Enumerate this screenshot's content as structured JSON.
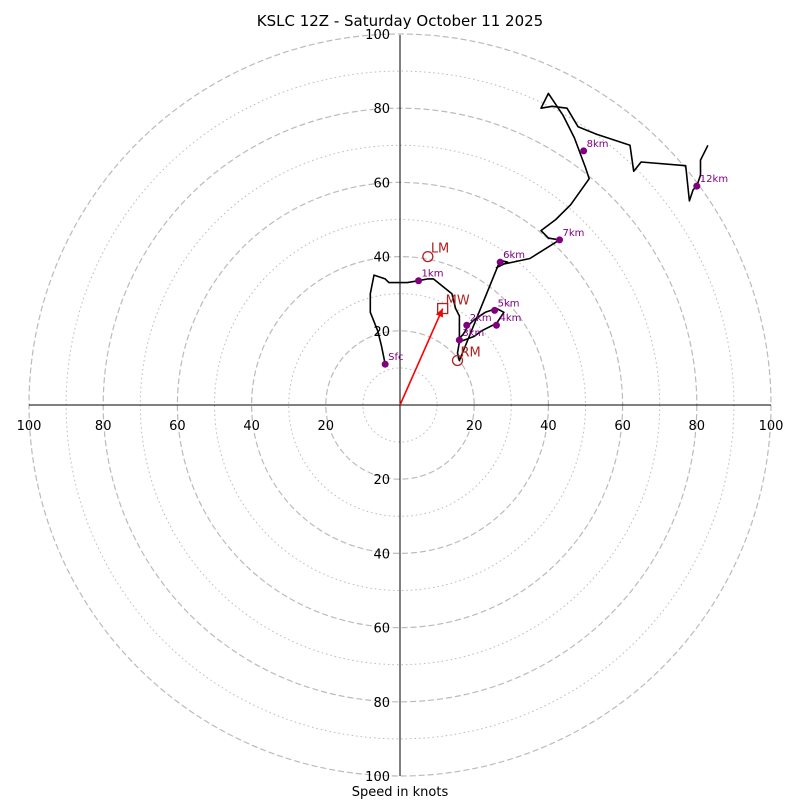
{
  "chart_data": {
    "type": "hodograph",
    "title": "KSLC 12Z - Saturday October 11 2025",
    "xlabel": "Speed in knots",
    "xlim": [
      -100,
      100
    ],
    "ylim": [
      -100,
      100
    ],
    "major_rings": [
      20,
      40,
      60,
      80,
      100
    ],
    "minor_rings": [
      10,
      30,
      50,
      70,
      90
    ],
    "tick_labels": [
      "20",
      "40",
      "60",
      "80",
      "100"
    ],
    "trace": [
      [
        -4,
        11
      ],
      [
        -5,
        16
      ],
      [
        -6,
        20
      ],
      [
        -8,
        25
      ],
      [
        -8,
        30
      ],
      [
        -7,
        35
      ],
      [
        -4,
        34
      ],
      [
        -3,
        33
      ],
      [
        2,
        33
      ],
      [
        5,
        33.5
      ],
      [
        7.5,
        34
      ],
      [
        9,
        34
      ],
      [
        14,
        30
      ],
      [
        15,
        26
      ],
      [
        16,
        24
      ],
      [
        16,
        20
      ],
      [
        16,
        18
      ],
      [
        17,
        19
      ],
      [
        18.5,
        21.5
      ],
      [
        20,
        23
      ],
      [
        23,
        25
      ],
      [
        26,
        26
      ],
      [
        28,
        25
      ],
      [
        26,
        22
      ],
      [
        22,
        20
      ],
      [
        20,
        18.5
      ],
      [
        16,
        17
      ],
      [
        15.5,
        14
      ],
      [
        16,
        12
      ],
      [
        27,
        39
      ],
      [
        29,
        38.5
      ],
      [
        26,
        37
      ],
      [
        28,
        38
      ],
      [
        35,
        39.5
      ],
      [
        43,
        44.5
      ],
      [
        40,
        45
      ],
      [
        38,
        47
      ],
      [
        42,
        50
      ],
      [
        46,
        54
      ],
      [
        51,
        61
      ],
      [
        50,
        64
      ],
      [
        47,
        72
      ],
      [
        44,
        78
      ],
      [
        40,
        84
      ],
      [
        38,
        80
      ],
      [
        41,
        80.5
      ],
      [
        45,
        80
      ],
      [
        48,
        75
      ],
      [
        53,
        73
      ],
      [
        62,
        70
      ],
      [
        63,
        63
      ],
      [
        65,
        65.5
      ],
      [
        77,
        64.5
      ],
      [
        78,
        55
      ],
      [
        79,
        58
      ],
      [
        80,
        59
      ],
      [
        81,
        62
      ],
      [
        81,
        66
      ],
      [
        83,
        70
      ]
    ],
    "height_markers": [
      {
        "label": "Sfc",
        "u": -4,
        "v": 11
      },
      {
        "label": "1km",
        "u": 5,
        "v": 33.5
      },
      {
        "label": "2km",
        "u": 18,
        "v": 21.5
      },
      {
        "label": "3km",
        "u": 16,
        "v": 17.5
      },
      {
        "label": "4km",
        "u": 26,
        "v": 21.5
      },
      {
        "label": "5km",
        "u": 25.5,
        "v": 25.5
      },
      {
        "label": "6km",
        "u": 27,
        "v": 38.5
      },
      {
        "label": "7km",
        "u": 43,
        "v": 44.5
      },
      {
        "label": "8km",
        "u": 49.5,
        "v": 68.5
      },
      {
        "label": "12km",
        "u": 80,
        "v": 59
      }
    ],
    "storm_motion": [
      {
        "label": "LM",
        "u": 7.5,
        "v": 40,
        "shape": "circle"
      },
      {
        "label": "MW",
        "u": 11.5,
        "v": 26,
        "shape": "square"
      },
      {
        "label": "RM",
        "u": 15.5,
        "v": 12,
        "shape": "circle"
      }
    ],
    "mean_wind_vector": {
      "from": [
        0,
        0
      ],
      "to": [
        11.5,
        26
      ]
    },
    "colors": {
      "trace": "#000000",
      "marker": "#800080",
      "storm": "#b22222",
      "vector": "#ff0000",
      "grid": "#bbbbbb"
    }
  }
}
